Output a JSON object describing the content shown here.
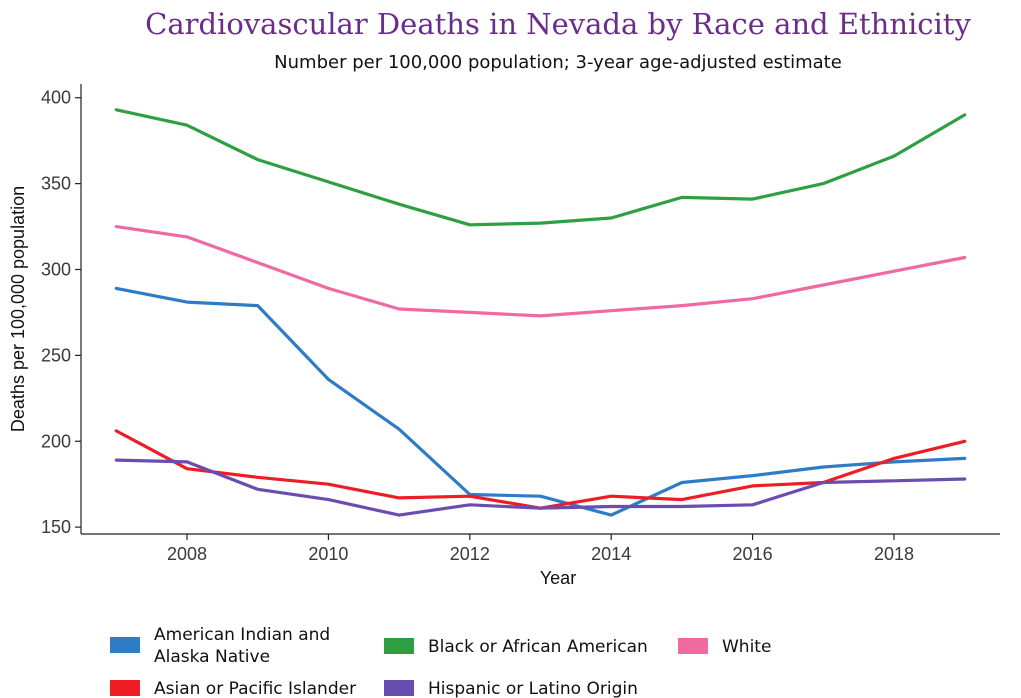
{
  "chart_data": {
    "type": "line",
    "title": "Cardiovascular Deaths in Nevada by Race and Ethnicity",
    "subtitle": "Number per 100,000 population; 3-year age-adjusted estimate",
    "xlabel": "Year",
    "ylabel": "Deaths per 100,000 population",
    "xlim": [
      2006.5,
      2019.5
    ],
    "ylim": [
      146,
      408
    ],
    "x_ticks": [
      2008,
      2010,
      2012,
      2014,
      2016,
      2018
    ],
    "y_ticks": [
      150,
      200,
      250,
      300,
      350,
      400
    ],
    "grid": false,
    "legend_position": "bottom",
    "x": [
      2007,
      2008,
      2009,
      2010,
      2011,
      2012,
      2013,
      2014,
      2015,
      2016,
      2017,
      2018,
      2019
    ],
    "series": [
      {
        "name": "American Indian and Alaska Native",
        "legend_lines": [
          "American Indian and",
          "Alaska Native"
        ],
        "color": "#2f7cc6",
        "values": [
          289,
          281,
          279,
          236,
          207,
          169,
          168,
          157,
          176,
          180,
          185,
          188,
          190
        ]
      },
      {
        "name": "Asian or Pacific Islander",
        "legend_lines": [
          "Asian or Pacific Islander"
        ],
        "color": "#ee1c25",
        "values": [
          206,
          184,
          179,
          175,
          167,
          168,
          161,
          168,
          166,
          174,
          176,
          190,
          200
        ]
      },
      {
        "name": "Black or African American",
        "legend_lines": [
          "Black or African American"
        ],
        "color": "#2ea043",
        "values": [
          393,
          384,
          364,
          351,
          338,
          326,
          327,
          330,
          342,
          341,
          350,
          366,
          390
        ]
      },
      {
        "name": "Hispanic or Latino Origin",
        "legend_lines": [
          "Hispanic or Latino Origin"
        ],
        "color": "#6a4db1",
        "values": [
          189,
          188,
          172,
          166,
          157,
          163,
          161,
          162,
          162,
          163,
          176,
          177,
          178
        ]
      },
      {
        "name": "White",
        "legend_lines": [
          "White"
        ],
        "color": "#ee6aa0",
        "values": [
          325,
          319,
          304,
          289,
          277,
          275,
          273,
          276,
          279,
          283,
          291,
          299,
          307
        ]
      }
    ]
  }
}
